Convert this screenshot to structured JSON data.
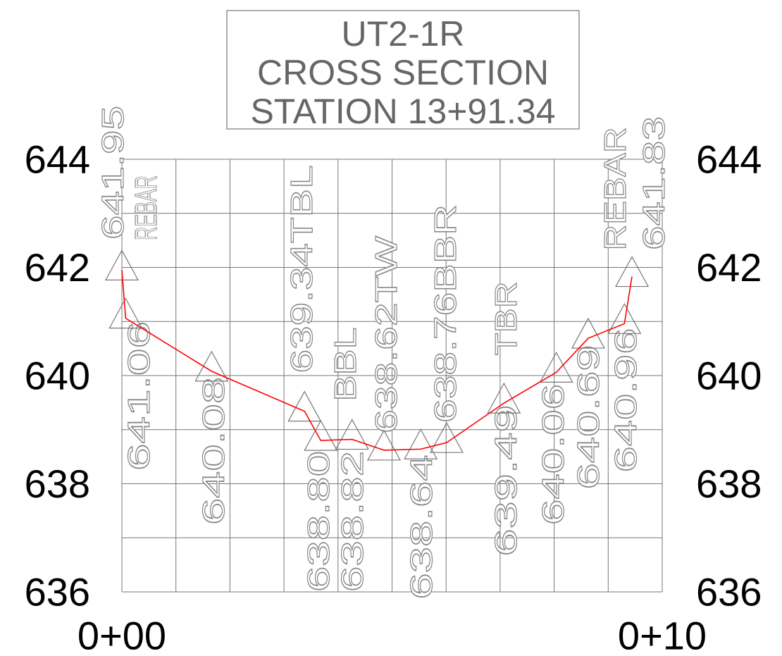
{
  "chart_data": {
    "type": "line",
    "title": [
      "UT2-1R",
      "CROSS SECTION",
      "STATION 13+91.34"
    ],
    "x": [
      0,
      0.07,
      1.66,
      3.38,
      3.68,
      4.26,
      4.85,
      5.53,
      6.01,
      7.07,
      8.04,
      8.63,
      9.3,
      9.44
    ],
    "values": [
      641.95,
      641.06,
      640.08,
      639.34,
      638.8,
      638.82,
      638.62,
      638.64,
      638.76,
      639.49,
      640.06,
      640.69,
      640.96,
      641.83
    ],
    "value_labels": [
      "641.95",
      "641.06",
      "640.08",
      "639.34",
      "638.80",
      "638.82",
      "638.62",
      "638.64",
      "638.76",
      "639.49",
      "640.06",
      "640.69",
      "640.96",
      "641.83"
    ],
    "descriptions": [
      "REBAR",
      null,
      null,
      "TBL",
      null,
      "BBL",
      "TW",
      null,
      "BBR",
      "TBR",
      null,
      null,
      null,
      "REBAR"
    ],
    "color": "#ff0000",
    "marker_color": "#777777",
    "xlim": [
      0,
      10
    ],
    "xticks": [
      {
        "value": 0,
        "label": "0+00"
      },
      {
        "value": 10,
        "label": "0+10"
      }
    ],
    "minor_xticks": [
      1,
      2,
      3,
      4,
      5,
      6,
      7,
      8,
      9
    ],
    "ylim": [
      636,
      644
    ],
    "yticks": [
      636,
      638,
      640,
      642,
      644
    ],
    "minor_yticks": [
      637,
      639,
      641,
      643
    ],
    "grid": true
  }
}
